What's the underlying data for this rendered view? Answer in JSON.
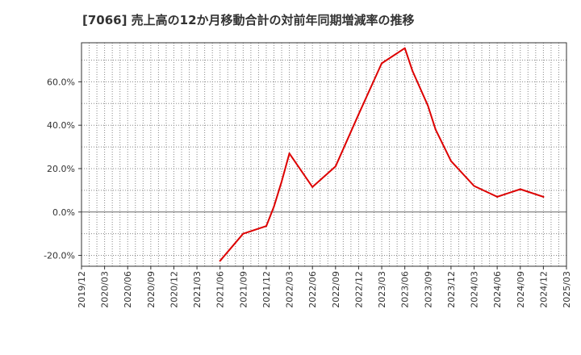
{
  "chart_data": {
    "type": "line",
    "title": "[7066]  売上高の12か月移動合計の対前年同期増減率の推移",
    "xlabel": "",
    "ylabel": "",
    "ylim": [
      -25,
      78
    ],
    "yticks": [
      -20,
      0,
      20,
      40,
      60
    ],
    "ytick_labels": [
      "-20.0%",
      "0.0%",
      "20.0%",
      "40.0%",
      "60.0%"
    ],
    "categories": [
      "2019/12",
      "2020/03",
      "2020/06",
      "2020/09",
      "2020/12",
      "2021/03",
      "2021/06",
      "2021/09",
      "2021/12",
      "2022/03",
      "2022/06",
      "2022/09",
      "2022/12",
      "2023/03",
      "2023/06",
      "2023/09",
      "2023/12",
      "2024/03",
      "2024/06",
      "2024/09",
      "2024/12",
      "2025/03"
    ],
    "grid": true,
    "legend": "none",
    "series": [
      {
        "name": "増減率",
        "color": "#dd0000",
        "points": [
          [
            "2021/06",
            -22.5
          ],
          [
            "2021/09",
            -10.0
          ],
          [
            "2021/12",
            -6.5
          ],
          [
            "2022/01",
            2.5
          ],
          [
            "2022/02",
            14.0
          ],
          [
            "2022/03",
            27.0
          ],
          [
            "2022/06",
            11.5
          ],
          [
            "2022/09",
            21.0
          ],
          [
            "2022/12",
            45.0
          ],
          [
            "2023/03",
            68.5
          ],
          [
            "2023/06",
            75.5
          ],
          [
            "2023/07",
            65.0
          ],
          [
            "2023/09",
            49.0
          ],
          [
            "2023/10",
            38.0
          ],
          [
            "2023/12",
            23.5
          ],
          [
            "2024/03",
            12.0
          ],
          [
            "2024/06",
            7.0
          ],
          [
            "2024/09",
            10.5
          ],
          [
            "2024/12",
            7.0
          ]
        ]
      }
    ]
  }
}
